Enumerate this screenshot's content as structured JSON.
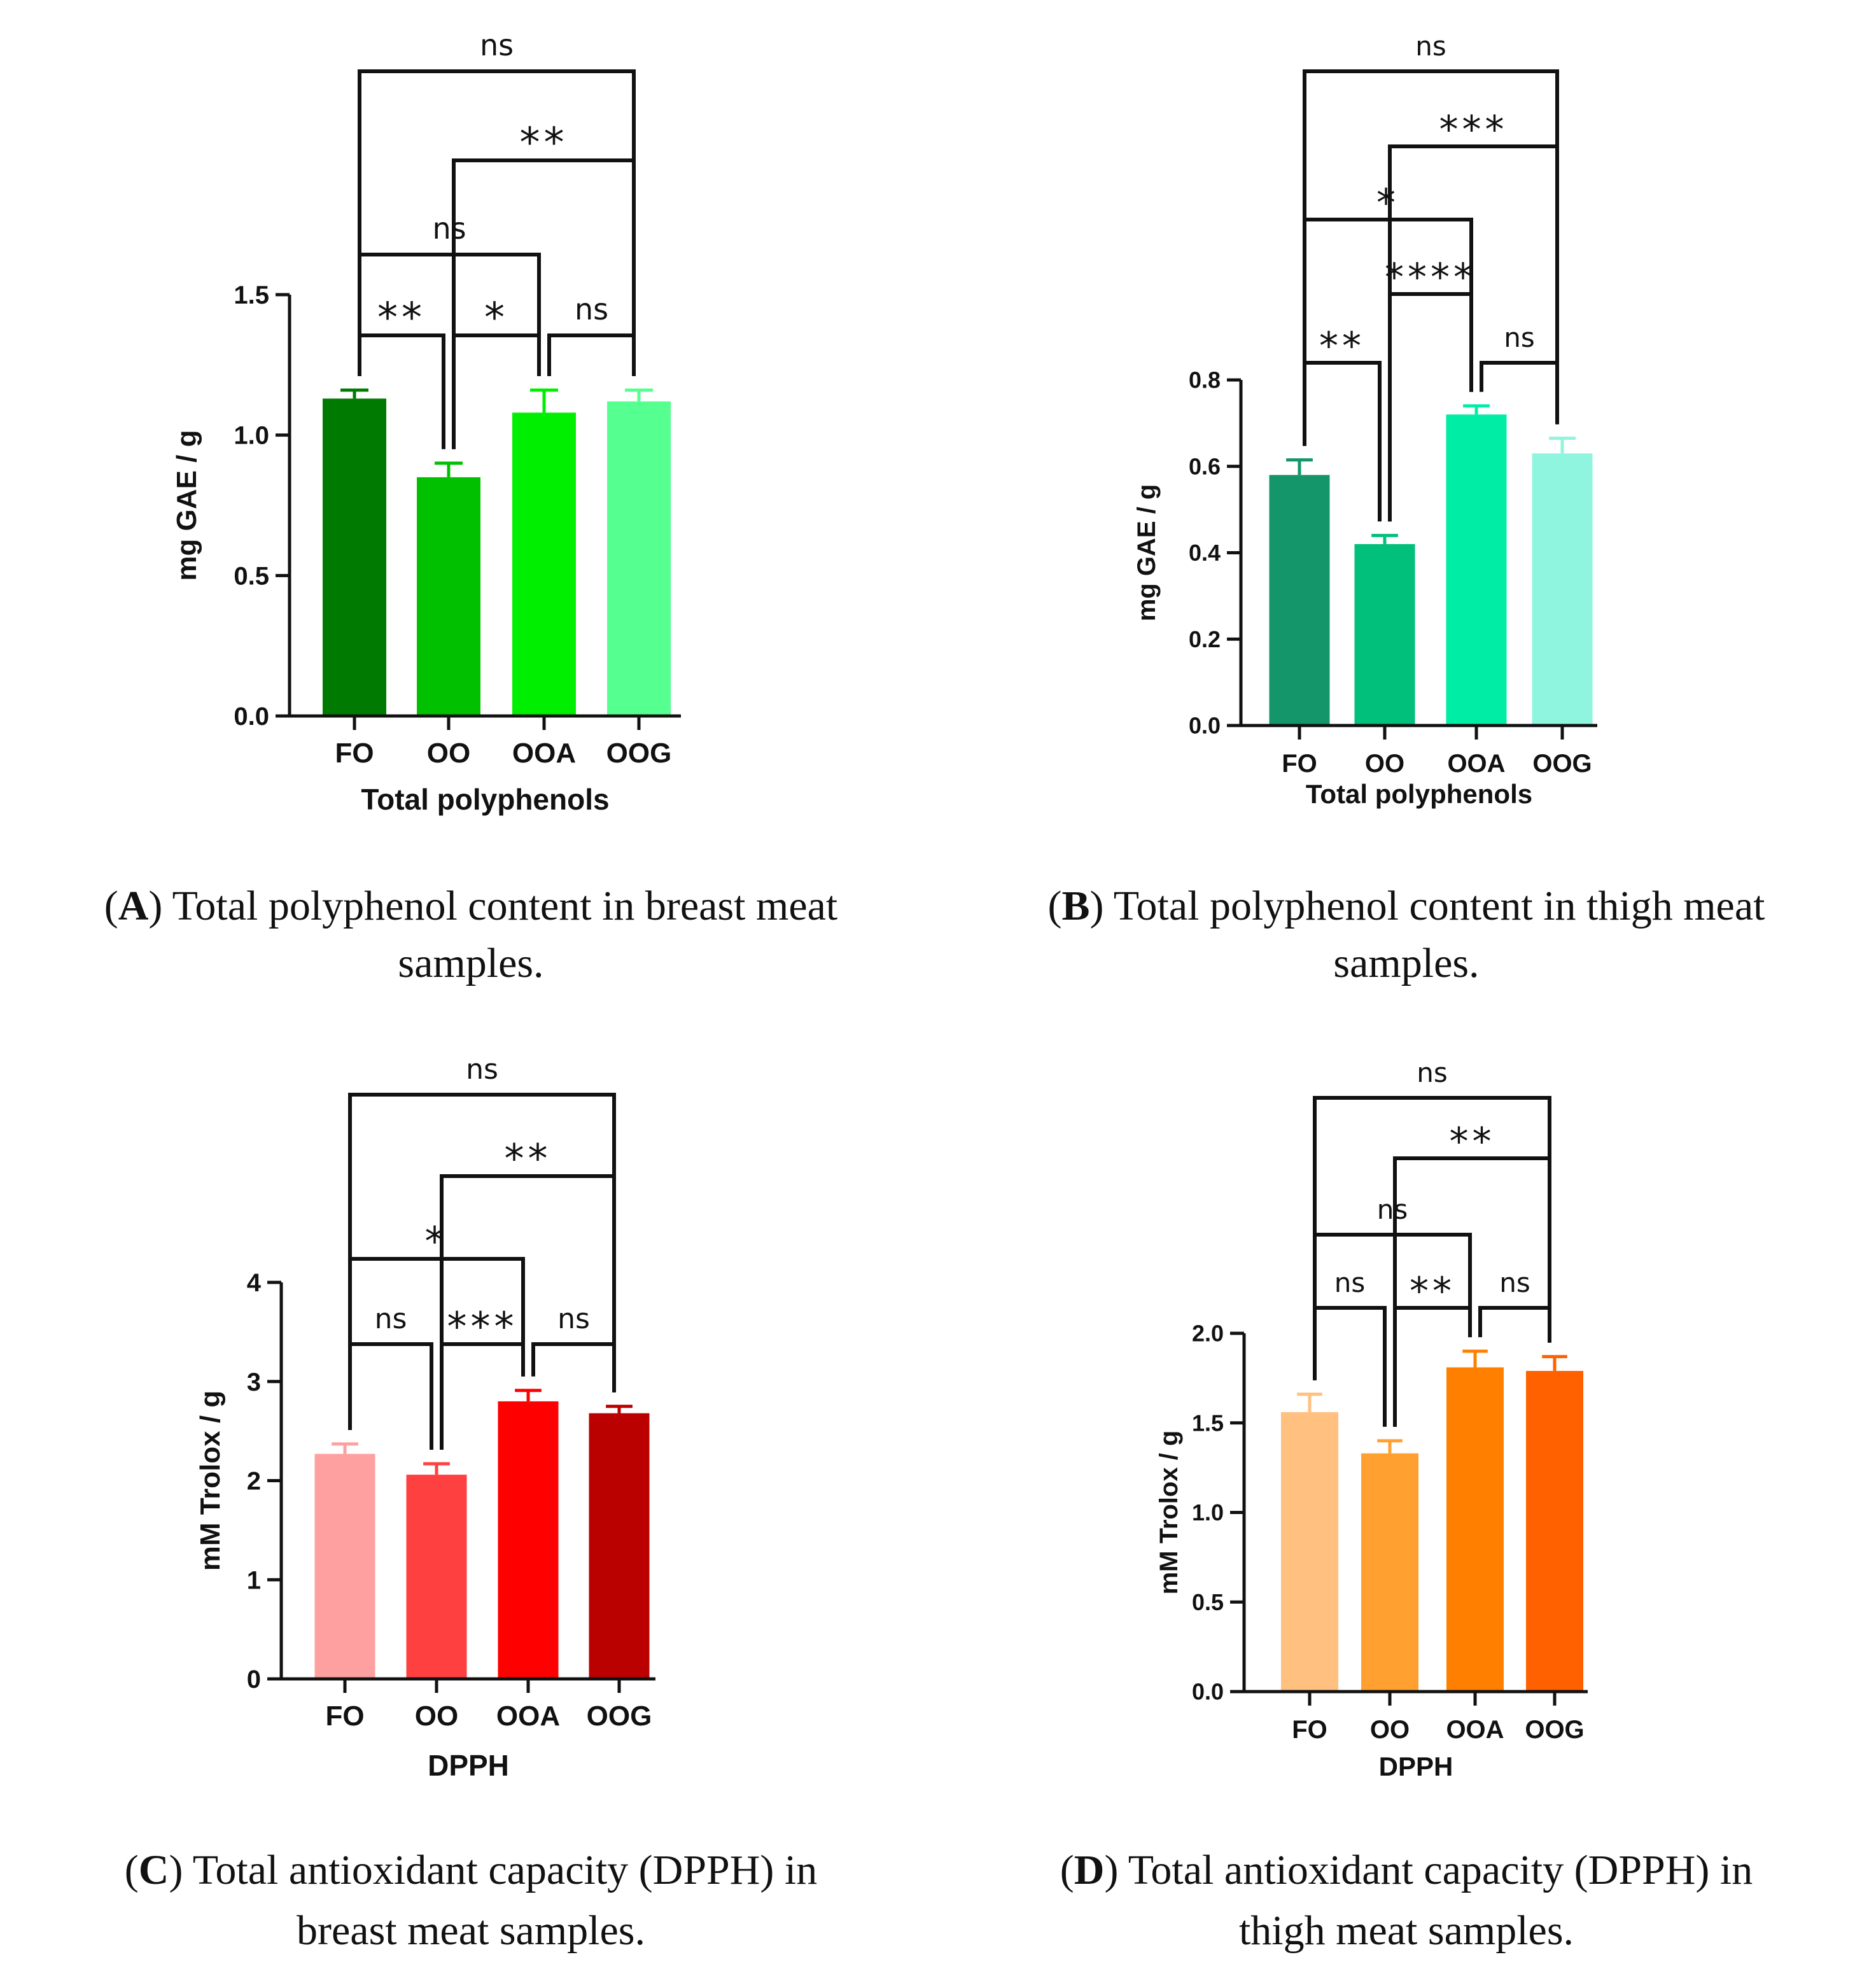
{
  "chart_data": [
    {
      "panel": "A",
      "type": "bar",
      "title": "",
      "categories": [
        "FO",
        "OO",
        "OOA",
        "OOG"
      ],
      "values": [
        1.13,
        0.85,
        1.08,
        1.12
      ],
      "errors": [
        0.03,
        0.05,
        0.08,
        0.04
      ],
      "colors": [
        "#007a00",
        "#00c000",
        "#00ee00",
        "#55ff90"
      ],
      "xlabel": "Total polyphenols",
      "ylabel": "mg GAE / g",
      "ylim": [
        0,
        1.5
      ],
      "yticks": [
        "0.0",
        "0.5",
        "1.0",
        "1.5"
      ],
      "significance": [
        {
          "from": 0,
          "to": 1,
          "label": "**",
          "level": 0
        },
        {
          "from": 1,
          "to": 2,
          "label": "*",
          "level": 0
        },
        {
          "from": 2,
          "to": 3,
          "label": "ns",
          "level": 0
        },
        {
          "from": 0,
          "to": 2,
          "label": "ns",
          "level": 1
        },
        {
          "from": 1,
          "to": 3,
          "label": "**",
          "level": 2
        },
        {
          "from": 0,
          "to": 3,
          "label": "ns",
          "level": 3
        }
      ],
      "caption_letter": "A",
      "caption_line1": ") Total polyphenol content in breast meat",
      "caption_line2": "samples."
    },
    {
      "panel": "B",
      "type": "bar",
      "title": "",
      "categories": [
        "FO",
        "OO",
        "OOA",
        "OOG"
      ],
      "values": [
        0.58,
        0.42,
        0.72,
        0.63
      ],
      "errors": [
        0.035,
        0.02,
        0.02,
        0.035
      ],
      "colors": [
        "#15966a",
        "#00c07c",
        "#00eda6",
        "#8ff5df"
      ],
      "xlabel": "Total polyphenols",
      "ylabel": "mg GAE / g",
      "ylim": [
        0,
        0.8
      ],
      "yticks": [
        "0.0",
        "0.2",
        "0.4",
        "0.6",
        "0.8"
      ],
      "significance": [
        {
          "from": 0,
          "to": 1,
          "label": "**",
          "level": 0
        },
        {
          "from": 2,
          "to": 3,
          "label": "ns",
          "level": 0
        },
        {
          "from": 1,
          "to": 2,
          "label": "****",
          "level": 1
        },
        {
          "from": 0,
          "to": 2,
          "label": "*",
          "level": 2
        },
        {
          "from": 1,
          "to": 3,
          "label": "***",
          "level": 3
        },
        {
          "from": 0,
          "to": 3,
          "label": "ns",
          "level": 4
        }
      ],
      "caption_letter": "B",
      "caption_line1": ") Total polyphenol content in thigh meat",
      "caption_line2": "samples."
    },
    {
      "panel": "C",
      "type": "bar",
      "title": "",
      "categories": [
        "FO",
        "OO",
        "OOA",
        "OOG"
      ],
      "values": [
        2.27,
        2.06,
        2.8,
        2.68
      ],
      "errors": [
        0.1,
        0.11,
        0.11,
        0.07
      ],
      "colors": [
        "#ffa0a0",
        "#ff4040",
        "#ff0000",
        "#bb0000"
      ],
      "xlabel": "DPPH",
      "ylabel": "mM Trolox / g",
      "ylim": [
        0,
        4
      ],
      "yticks": [
        "0",
        "1",
        "2",
        "3",
        "4"
      ],
      "significance": [
        {
          "from": 0,
          "to": 1,
          "label": "ns",
          "level": 0
        },
        {
          "from": 1,
          "to": 2,
          "label": "***",
          "level": 0
        },
        {
          "from": 2,
          "to": 3,
          "label": "ns",
          "level": 0
        },
        {
          "from": 0,
          "to": 2,
          "label": "*",
          "level": 1
        },
        {
          "from": 1,
          "to": 3,
          "label": "**",
          "level": 2
        },
        {
          "from": 0,
          "to": 3,
          "label": "ns",
          "level": 3
        }
      ],
      "caption_letter": "C",
      "caption_line1": ") Total antioxidant capacity (DPPH) in",
      "caption_line2": "breast meat samples."
    },
    {
      "panel": "D",
      "type": "bar",
      "title": "",
      "categories": [
        "FO",
        "OO",
        "OOA",
        "OOG"
      ],
      "values": [
        1.56,
        1.33,
        1.81,
        1.79
      ],
      "errors": [
        0.1,
        0.07,
        0.09,
        0.08
      ],
      "colors": [
        "#ffc080",
        "#ffa030",
        "#ff8000",
        "#ff6000"
      ],
      "xlabel": "DPPH",
      "ylabel": "mM Trolox / g",
      "ylim": [
        0,
        2.0
      ],
      "yticks": [
        "0.0",
        "0.5",
        "1.0",
        "1.5",
        "2.0"
      ],
      "significance": [
        {
          "from": 0,
          "to": 1,
          "label": "ns",
          "level": 0
        },
        {
          "from": 1,
          "to": 2,
          "label": "**",
          "level": 0
        },
        {
          "from": 2,
          "to": 3,
          "label": "ns",
          "level": 0
        },
        {
          "from": 0,
          "to": 2,
          "label": "ns",
          "level": 1
        },
        {
          "from": 1,
          "to": 3,
          "label": "**",
          "level": 2
        },
        {
          "from": 0,
          "to": 3,
          "label": "ns",
          "level": 3
        }
      ],
      "caption_letter": "D",
      "caption_line1": ") Total antioxidant capacity (DPPH) in",
      "caption_line2": "thigh meat samples."
    }
  ]
}
